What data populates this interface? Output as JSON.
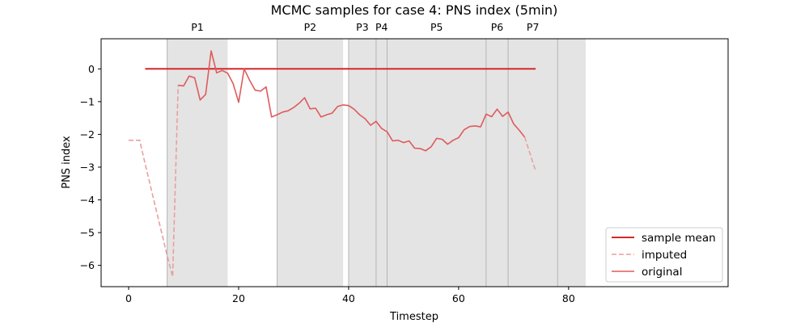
{
  "chart_data": {
    "type": "line",
    "title": "MCMC samples for case 4: PNS index (5min)",
    "xlabel": "Timestep",
    "ylabel": "PNS index",
    "xlim": [
      -5,
      109
    ],
    "ylim": [
      -6.65,
      0.92
    ],
    "x_ticks": [
      0,
      20,
      40,
      60,
      80
    ],
    "y_ticks": [
      0,
      -1,
      -2,
      -3,
      -4,
      -5,
      -6
    ],
    "grid": false,
    "legend_position": "lower-right",
    "phases": [
      {
        "label": "P1",
        "start": 7,
        "end": 18
      },
      {
        "label": "P2",
        "start": 27,
        "end": 39
      },
      {
        "label": "P3",
        "start": 40,
        "end": 45
      },
      {
        "label": "P4",
        "start": 45,
        "end": 47
      },
      {
        "label": "P5",
        "start": 47,
        "end": 65
      },
      {
        "label": "P6",
        "start": 65,
        "end": 69
      },
      {
        "label": "P7",
        "start": 69,
        "end": 78
      },
      {
        "label": "",
        "start": 78,
        "end": 83
      }
    ],
    "series": [
      {
        "name": "sample mean",
        "style": "solid",
        "color": "#d62728",
        "x": [
          3,
          74
        ],
        "y": [
          0,
          0
        ]
      },
      {
        "name": "imputed",
        "style": "dashed",
        "color": "#eb9e9e",
        "segments": [
          {
            "x": [
              0,
              2,
              3,
              4,
              5,
              6,
              7,
              8,
              9
            ],
            "y": [
              -2.18,
              -2.18,
              -2.9,
              -3.6,
              -4.3,
              -5.0,
              -5.7,
              -6.35,
              -0.5
            ]
          },
          {
            "x": [
              72,
              74
            ],
            "y": [
              -2.08,
              -3.12
            ]
          }
        ]
      },
      {
        "name": "original",
        "style": "solid",
        "color": "#e05a5c",
        "x": [
          9,
          10,
          11,
          12,
          13,
          14,
          15,
          16,
          17,
          18,
          19,
          20,
          21,
          22,
          23,
          24,
          25,
          26,
          27,
          28,
          29,
          30,
          31,
          32,
          33,
          34,
          35,
          36,
          37,
          38,
          39,
          40,
          41,
          42,
          43,
          44,
          45,
          46,
          47,
          48,
          49,
          50,
          51,
          52,
          53,
          54,
          55,
          56,
          57,
          58,
          59,
          60,
          61,
          62,
          63,
          64,
          65,
          66,
          67,
          68,
          69,
          70,
          71,
          72
        ],
        "y": [
          -0.5,
          -0.52,
          -0.22,
          -0.27,
          -0.95,
          -0.78,
          0.55,
          -0.12,
          -0.05,
          -0.13,
          -0.45,
          -1.02,
          0.0,
          -0.35,
          -0.65,
          -0.68,
          -0.55,
          -1.47,
          -1.4,
          -1.32,
          -1.28,
          -1.18,
          -1.05,
          -0.88,
          -1.22,
          -1.2,
          -1.47,
          -1.4,
          -1.35,
          -1.15,
          -1.1,
          -1.12,
          -1.23,
          -1.4,
          -1.52,
          -1.72,
          -1.6,
          -1.82,
          -1.92,
          -2.2,
          -2.18,
          -2.25,
          -2.2,
          -2.42,
          -2.43,
          -2.5,
          -2.38,
          -2.12,
          -2.15,
          -2.3,
          -2.18,
          -2.1,
          -1.86,
          -1.76,
          -1.74,
          -1.77,
          -1.38,
          -1.46,
          -1.23,
          -1.45,
          -1.32,
          -1.68,
          -1.87,
          -2.08
        ]
      }
    ]
  }
}
